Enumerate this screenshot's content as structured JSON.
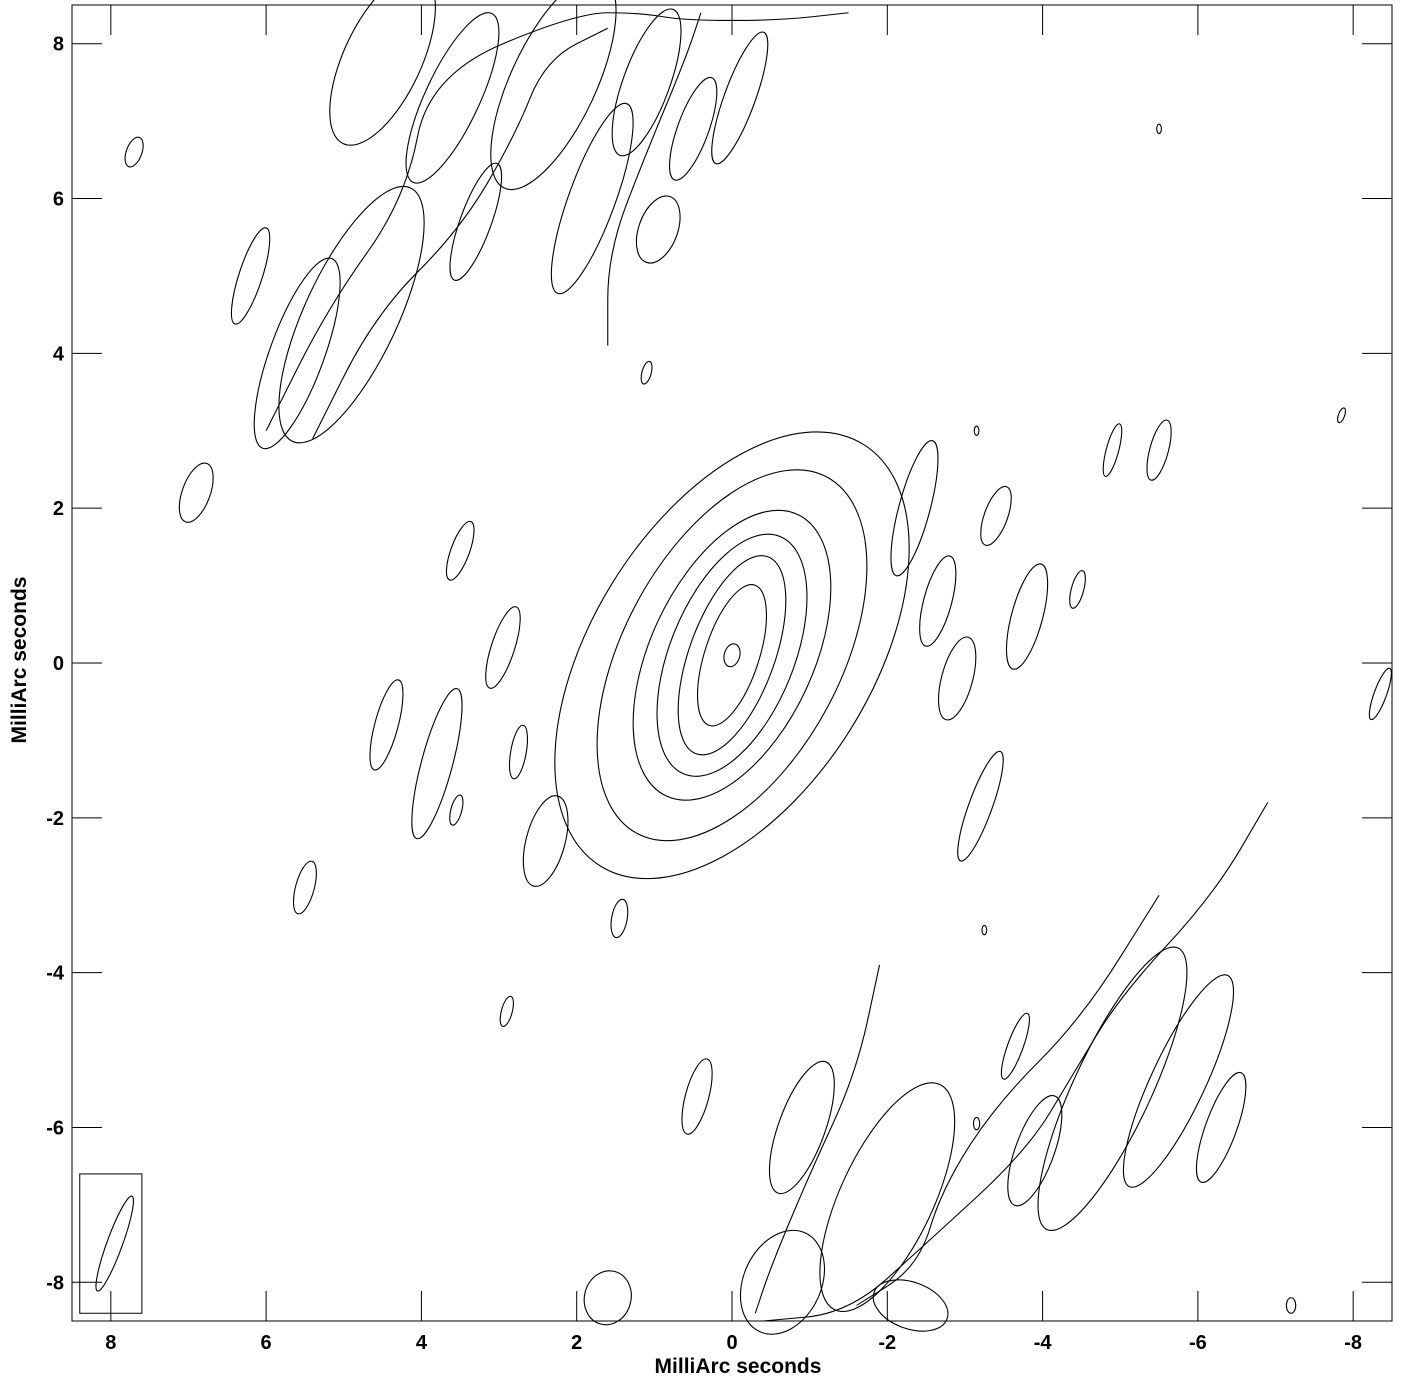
{
  "chart_data": {
    "type": "contour",
    "title": "",
    "xlabel": "MilliArc seconds",
    "ylabel": "MilliArc seconds",
    "xlim": [
      8.5,
      -8.5
    ],
    "ylim": [
      -8.5,
      8.5
    ],
    "xticks": [
      8,
      6,
      4,
      2,
      0,
      -2,
      -4,
      -6,
      -8
    ],
    "yticks": [
      8,
      6,
      4,
      2,
      0,
      -2,
      -4,
      -6,
      -8
    ],
    "x_tick_labels": [
      "8",
      "6",
      "4",
      "2",
      "0",
      "-2",
      "-4",
      "-6",
      "-8"
    ],
    "y_tick_labels": [
      "8",
      "6",
      "4",
      "2",
      "0",
      "-2",
      "-4",
      "-6",
      "-8"
    ],
    "grid": false,
    "source_center": [
      0.0,
      0.1
    ],
    "central_contours": [
      {
        "rx": 0.1,
        "ry": 0.15,
        "tilt_deg": -15
      },
      {
        "rx": 0.35,
        "ry": 0.95,
        "tilt_deg": -18
      },
      {
        "rx": 0.55,
        "ry": 1.35,
        "tilt_deg": -20
      },
      {
        "rx": 0.8,
        "ry": 1.65,
        "tilt_deg": -22
      },
      {
        "rx": 1.05,
        "ry": 2.0,
        "tilt_deg": -25
      },
      {
        "rx": 1.4,
        "ry": 2.6,
        "tilt_deg": -28
      },
      {
        "rx": 1.8,
        "ry": 3.2,
        "tilt_deg": -32
      }
    ],
    "noise_blobs": [
      {
        "x": 7.7,
        "y": 6.6,
        "rx": 0.1,
        "ry": 0.2,
        "tilt_deg": -20
      },
      {
        "x": 6.9,
        "y": 2.2,
        "rx": 0.18,
        "ry": 0.4,
        "tilt_deg": -20
      },
      {
        "x": 6.2,
        "y": 5.0,
        "rx": 0.15,
        "ry": 0.65,
        "tilt_deg": -18
      },
      {
        "x": 5.6,
        "y": 4.0,
        "rx": 0.35,
        "ry": 1.3,
        "tilt_deg": -20
      },
      {
        "x": 4.9,
        "y": 4.5,
        "rx": 0.6,
        "ry": 1.8,
        "tilt_deg": -25
      },
      {
        "x": 3.5,
        "y": 1.45,
        "rx": 0.12,
        "ry": 0.4,
        "tilt_deg": -20
      },
      {
        "x": 2.95,
        "y": 0.2,
        "rx": 0.15,
        "ry": 0.55,
        "tilt_deg": -18
      },
      {
        "x": 4.45,
        "y": -0.8,
        "rx": 0.15,
        "ry": 0.6,
        "tilt_deg": -15
      },
      {
        "x": 3.8,
        "y": -1.3,
        "rx": 0.2,
        "ry": 1.0,
        "tilt_deg": -15
      },
      {
        "x": 3.55,
        "y": -1.9,
        "rx": 0.07,
        "ry": 0.2,
        "tilt_deg": -15
      },
      {
        "x": 2.75,
        "y": -1.15,
        "rx": 0.1,
        "ry": 0.35,
        "tilt_deg": -10
      },
      {
        "x": 2.4,
        "y": -2.3,
        "rx": 0.25,
        "ry": 0.6,
        "tilt_deg": -15
      },
      {
        "x": 5.5,
        "y": -2.9,
        "rx": 0.12,
        "ry": 0.35,
        "tilt_deg": -15
      },
      {
        "x": 2.9,
        "y": -4.5,
        "rx": 0.07,
        "ry": 0.2,
        "tilt_deg": -15
      },
      {
        "x": 1.45,
        "y": -3.3,
        "rx": 0.1,
        "ry": 0.25,
        "tilt_deg": -10
      },
      {
        "x": 1.1,
        "y": 3.75,
        "rx": 0.06,
        "ry": 0.15,
        "tilt_deg": -15
      },
      {
        "x": -2.35,
        "y": 2.0,
        "rx": 0.2,
        "ry": 0.9,
        "tilt_deg": -15
      },
      {
        "x": -3.4,
        "y": 1.9,
        "rx": 0.15,
        "ry": 0.4,
        "tilt_deg": -20
      },
      {
        "x": -2.65,
        "y": 0.8,
        "rx": 0.18,
        "ry": 0.6,
        "tilt_deg": -15
      },
      {
        "x": -3.8,
        "y": 0.6,
        "rx": 0.2,
        "ry": 0.7,
        "tilt_deg": -15
      },
      {
        "x": -4.45,
        "y": 0.95,
        "rx": 0.08,
        "ry": 0.25,
        "tilt_deg": -15
      },
      {
        "x": -2.9,
        "y": -0.2,
        "rx": 0.2,
        "ry": 0.55,
        "tilt_deg": -15
      },
      {
        "x": -3.2,
        "y": -1.85,
        "rx": 0.15,
        "ry": 0.75,
        "tilt_deg": -20
      },
      {
        "x": -4.9,
        "y": 2.75,
        "rx": 0.08,
        "ry": 0.35,
        "tilt_deg": -15
      },
      {
        "x": -5.5,
        "y": 2.75,
        "rx": 0.12,
        "ry": 0.4,
        "tilt_deg": -15
      },
      {
        "x": -8.35,
        "y": -0.4,
        "rx": 0.08,
        "ry": 0.35,
        "tilt_deg": -20
      },
      {
        "x": -3.65,
        "y": -4.95,
        "rx": 0.1,
        "ry": 0.45,
        "tilt_deg": -20
      },
      {
        "x": -5.75,
        "y": -5.4,
        "rx": 0.35,
        "ry": 1.5,
        "tilt_deg": -25
      },
      {
        "x": -6.3,
        "y": -6.0,
        "rx": 0.2,
        "ry": 0.75,
        "tilt_deg": -20
      },
      {
        "x": -3.9,
        "y": -6.3,
        "rx": 0.25,
        "ry": 0.75,
        "tilt_deg": -20
      },
      {
        "x": -4.9,
        "y": -5.5,
        "rx": 0.5,
        "ry": 2.0,
        "tilt_deg": -25
      },
      {
        "x": -2.0,
        "y": -6.9,
        "rx": 0.6,
        "ry": 1.6,
        "tilt_deg": -25
      },
      {
        "x": -0.9,
        "y": -6.0,
        "rx": 0.3,
        "ry": 0.9,
        "tilt_deg": -20
      },
      {
        "x": -0.65,
        "y": -8.0,
        "rx": 0.5,
        "ry": 0.7,
        "tilt_deg": -25
      },
      {
        "x": 0.45,
        "y": -5.6,
        "rx": 0.15,
        "ry": 0.5,
        "tilt_deg": -15
      },
      {
        "x": 1.6,
        "y": -8.2,
        "rx": 0.3,
        "ry": 0.35,
        "tilt_deg": -15
      },
      {
        "x": 3.6,
        "y": 7.3,
        "rx": 0.35,
        "ry": 1.2,
        "tilt_deg": -25
      },
      {
        "x": 3.3,
        "y": 5.7,
        "rx": 0.2,
        "ry": 0.8,
        "tilt_deg": -20
      },
      {
        "x": 1.8,
        "y": 6.0,
        "rx": 0.3,
        "ry": 1.3,
        "tilt_deg": -20
      },
      {
        "x": 1.1,
        "y": 7.5,
        "rx": 0.3,
        "ry": 1.0,
        "tilt_deg": -20
      },
      {
        "x": 0.95,
        "y": 5.6,
        "rx": 0.25,
        "ry": 0.45,
        "tilt_deg": -20
      },
      {
        "x": 0.5,
        "y": 6.9,
        "rx": 0.2,
        "ry": 0.7,
        "tilt_deg": -20
      },
      {
        "x": 2.3,
        "y": 7.5,
        "rx": 0.55,
        "ry": 1.5,
        "tilt_deg": -25
      },
      {
        "x": 4.5,
        "y": 7.8,
        "rx": 0.5,
        "ry": 1.2,
        "tilt_deg": -25
      },
      {
        "x": -0.1,
        "y": 7.3,
        "rx": 0.2,
        "ry": 0.9,
        "tilt_deg": -20
      },
      {
        "x": -7.2,
        "y": -8.3,
        "rx": 0.06,
        "ry": 0.1,
        "tilt_deg": 0
      },
      {
        "x": -2.3,
        "y": -8.3,
        "rx": 0.5,
        "ry": 0.3,
        "tilt_deg": -20
      },
      {
        "x": -7.85,
        "y": 3.2,
        "rx": 0.04,
        "ry": 0.1,
        "tilt_deg": -20
      },
      {
        "x": -3.15,
        "y": 3.0,
        "rx": 0.03,
        "ry": 0.06,
        "tilt_deg": 0
      },
      {
        "x": -5.5,
        "y": 6.9,
        "rx": 0.03,
        "ry": 0.06,
        "tilt_deg": 0
      },
      {
        "x": -3.25,
        "y": -3.45,
        "rx": 0.03,
        "ry": 0.06,
        "tilt_deg": 0
      },
      {
        "x": -3.15,
        "y": -5.95,
        "rx": 0.04,
        "ry": 0.08,
        "tilt_deg": 0
      }
    ],
    "sidelobe_bands": [
      {
        "points": [
          [
            6.0,
            3.0
          ],
          [
            5.2,
            4.6
          ],
          [
            4.2,
            6.0
          ],
          [
            3.9,
            7.6
          ],
          [
            2.0,
            8.4
          ],
          [
            1.2,
            8.4
          ],
          [
            0.6,
            8.3
          ],
          [
            -0.6,
            8.3
          ],
          [
            -1.5,
            8.4
          ]
        ]
      },
      {
        "points": [
          [
            5.4,
            2.9
          ],
          [
            4.6,
            4.5
          ],
          [
            3.5,
            5.6
          ],
          [
            2.8,
            6.8
          ],
          [
            2.4,
            7.8
          ],
          [
            1.6,
            8.2
          ]
        ]
      },
      {
        "points": [
          [
            1.6,
            4.1
          ],
          [
            1.6,
            5.3
          ],
          [
            1.1,
            6.6
          ],
          [
            0.6,
            7.8
          ],
          [
            0.4,
            8.4
          ]
        ]
      },
      {
        "points": [
          [
            -6.9,
            -1.8
          ],
          [
            -6.2,
            -3.0
          ],
          [
            -5.0,
            -4.3
          ],
          [
            -4.4,
            -5.3
          ],
          [
            -3.8,
            -6.3
          ],
          [
            -2.5,
            -7.5
          ],
          [
            -1.5,
            -8.4
          ],
          [
            -0.4,
            -8.5
          ]
        ]
      },
      {
        "points": [
          [
            -5.5,
            -3.0
          ],
          [
            -4.5,
            -4.6
          ],
          [
            -3.4,
            -5.7
          ],
          [
            -2.7,
            -6.8
          ],
          [
            -2.4,
            -7.8
          ],
          [
            -1.6,
            -8.3
          ]
        ]
      },
      {
        "points": [
          [
            -1.9,
            -3.9
          ],
          [
            -1.6,
            -5.3
          ],
          [
            -1.0,
            -6.6
          ],
          [
            -0.5,
            -7.8
          ],
          [
            -0.3,
            -8.4
          ]
        ]
      }
    ],
    "beam": {
      "x": 7.95,
      "y": -7.5,
      "rx": 0.1,
      "ry": 0.65,
      "tilt_deg": -20,
      "box": [
        8.4,
        -6.6,
        7.6,
        -8.4
      ]
    }
  }
}
